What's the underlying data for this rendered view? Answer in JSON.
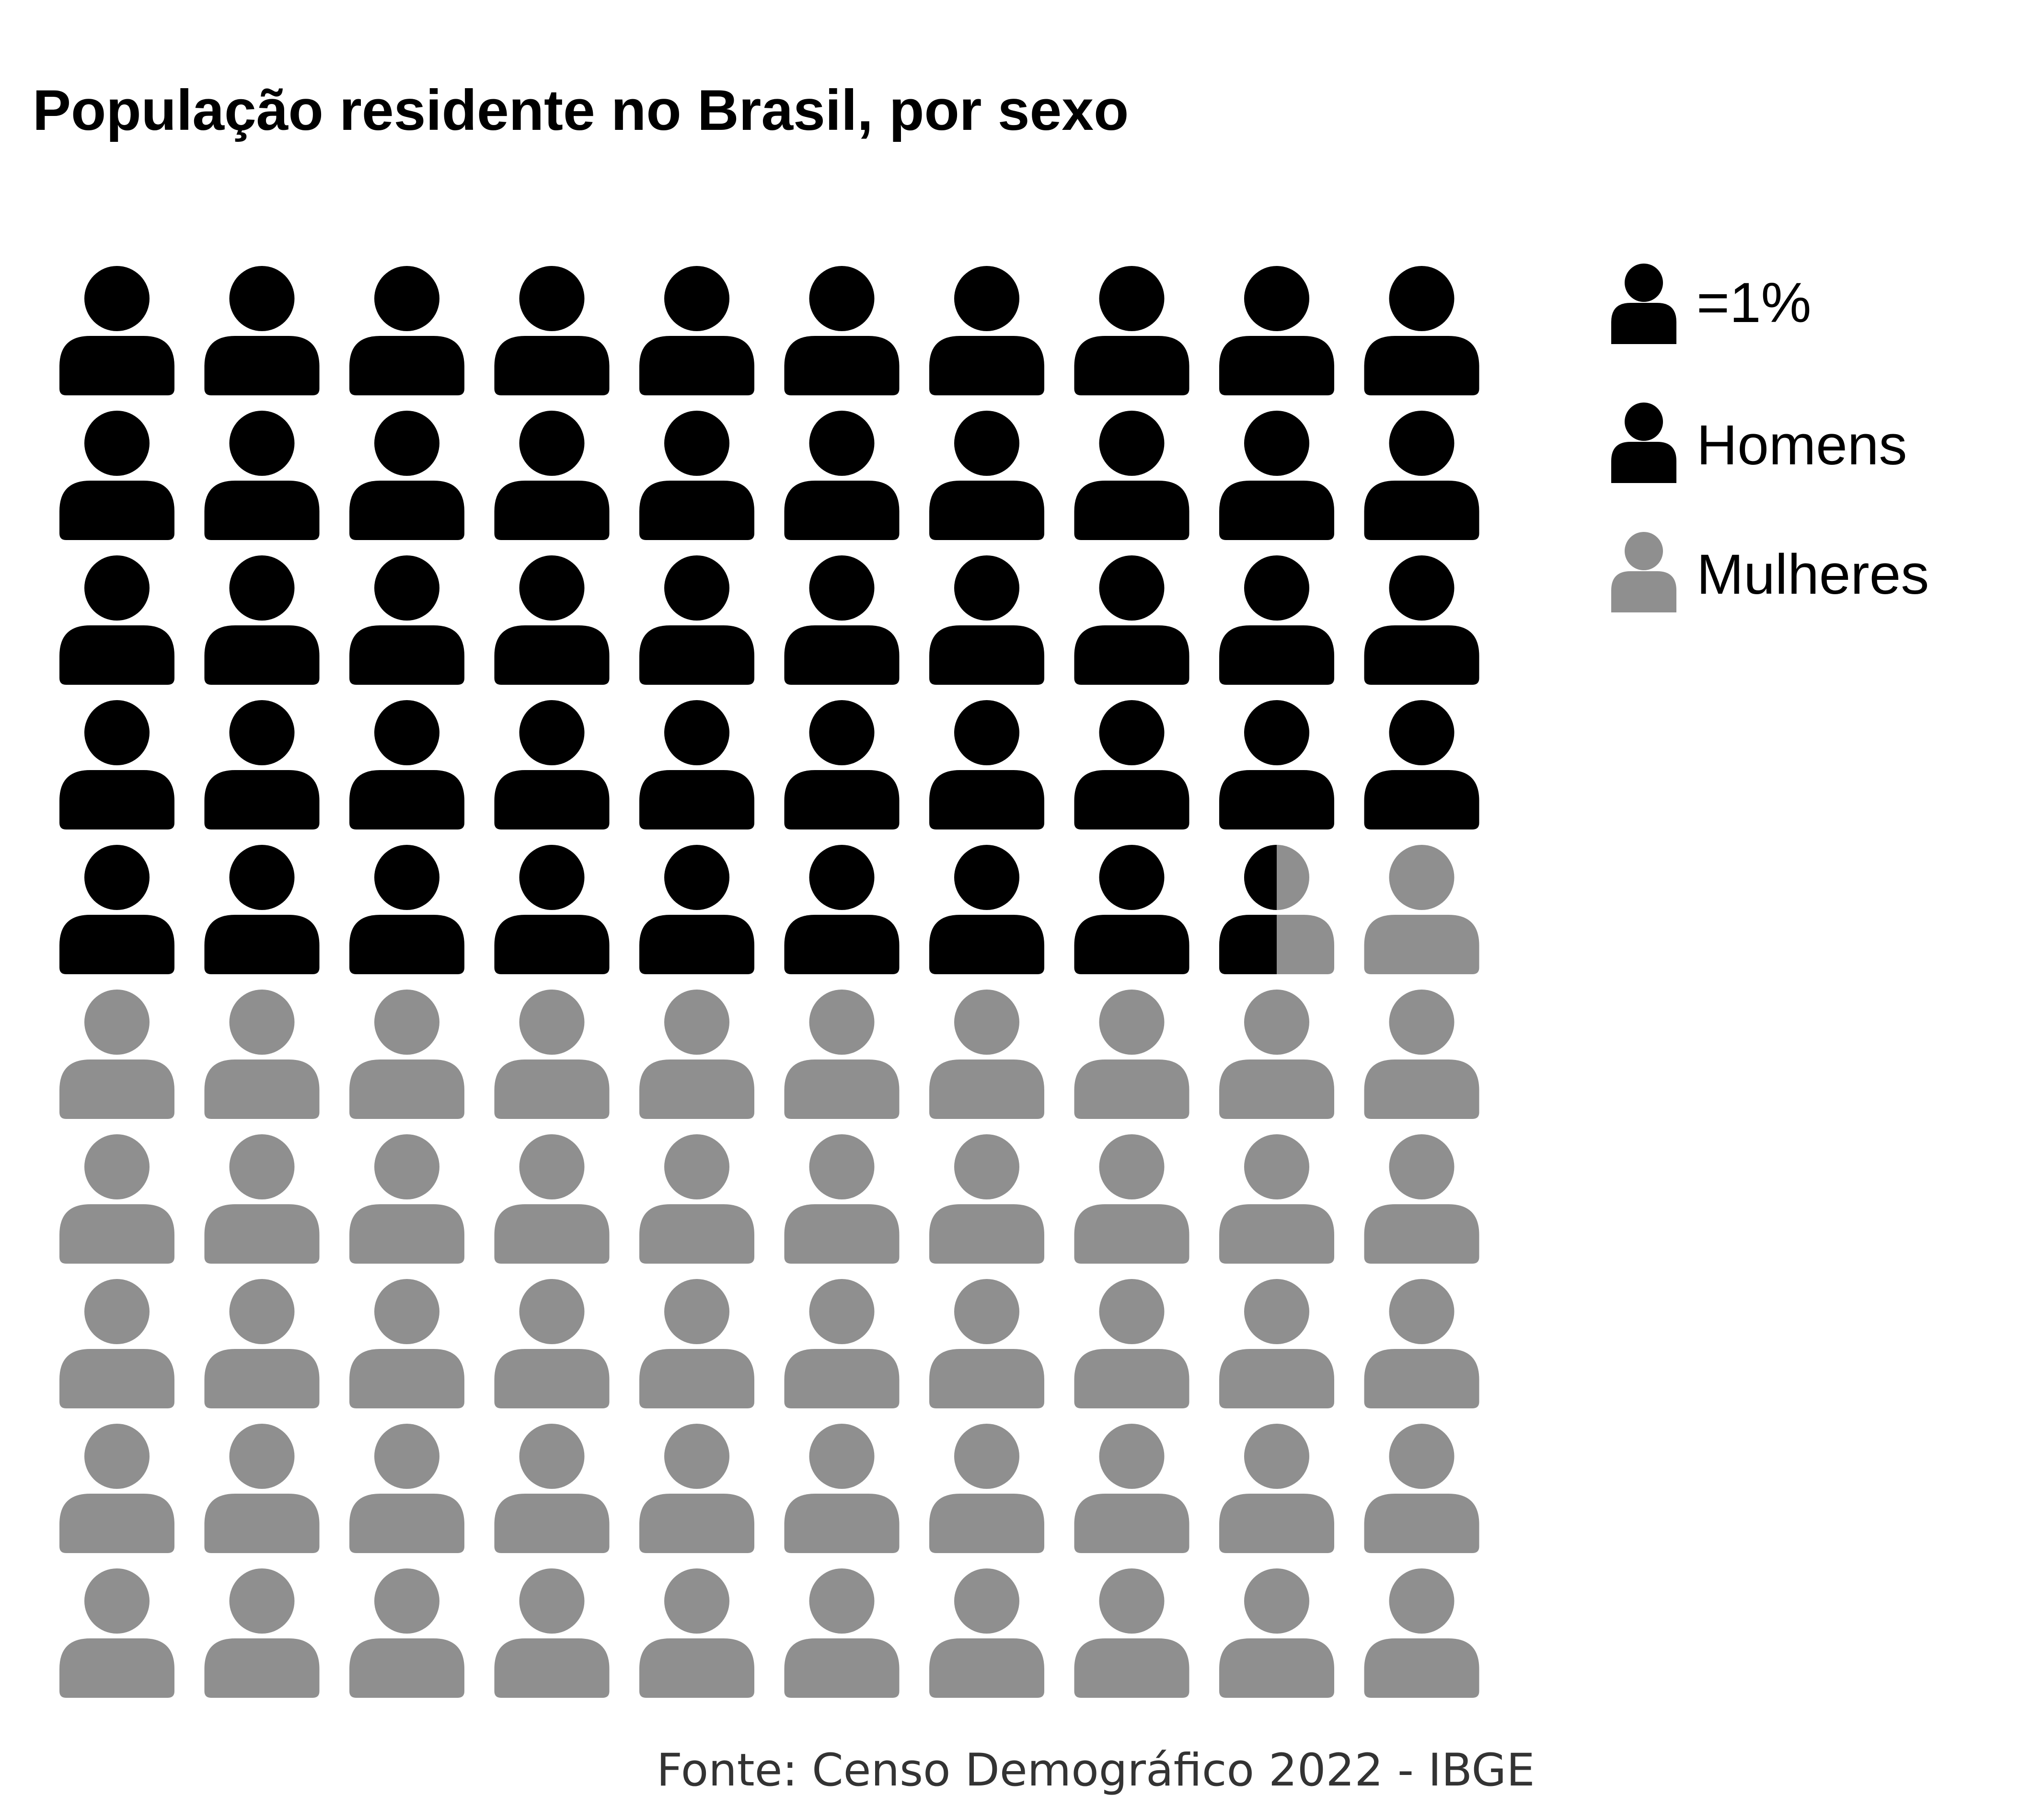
{
  "chart_data": {
    "type": "waffle",
    "title": "População residente no Brasil, por sexo",
    "unit_label": "=1%",
    "total_icons": 100,
    "series": [
      {
        "name": "Homens",
        "value": 48.5,
        "color": "#000000"
      },
      {
        "name": "Mulheres",
        "value": 51.5,
        "color": "#8f8f8f"
      }
    ],
    "legend_position": "top-right",
    "source": "Fonte: Censo Demográfico 2022 - IBGE"
  }
}
